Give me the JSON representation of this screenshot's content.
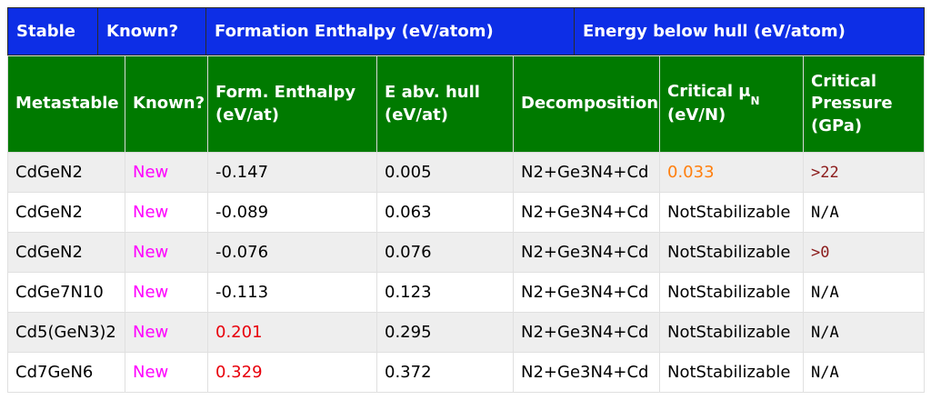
{
  "legend": {
    "stable": "Stable",
    "known": "Known?",
    "formation_enthalpy": "Formation Enthalpy (eV/atom)",
    "energy_below_hull": "Energy below hull (eV/atom)"
  },
  "table": {
    "headers": {
      "metastable": "Metastable",
      "known": "Known?",
      "form_enthalpy_line1": "Form. Enthalpy",
      "form_enthalpy_line2": "(eV/at)",
      "e_abv_hull_line1": "E abv. hull",
      "e_abv_hull_line2": "(eV/at)",
      "decomposition": "Decomposition",
      "critical_mu_prefix": "Critical μ",
      "critical_mu_sub": "N",
      "critical_mu_unit": "(eV/N)",
      "critical_pressure_line1": "Critical",
      "critical_pressure_line2": "Pressure",
      "critical_pressure_line3": "(GPa)"
    },
    "rows": [
      {
        "formula": "CdGeN2",
        "known": "New",
        "form_enthalpy": "-0.147",
        "e_abv_hull": "0.005",
        "decomposition": "N2+Ge3N4+Cd",
        "critical_mu": "0.033",
        "critical_pressure": ">22"
      },
      {
        "formula": "CdGeN2",
        "known": "New",
        "form_enthalpy": "-0.089",
        "e_abv_hull": "0.063",
        "decomposition": "N2+Ge3N4+Cd",
        "critical_mu": "NotStabilizable",
        "critical_pressure": "N/A"
      },
      {
        "formula": "CdGeN2",
        "known": "New",
        "form_enthalpy": "-0.076",
        "e_abv_hull": "0.076",
        "decomposition": "N2+Ge3N4+Cd",
        "critical_mu": "NotStabilizable",
        "critical_pressure": ">0"
      },
      {
        "formula": "CdGe7N10",
        "known": "New",
        "form_enthalpy": "-0.113",
        "e_abv_hull": "0.123",
        "decomposition": "N2+Ge3N4+Cd",
        "critical_mu": "NotStabilizable",
        "critical_pressure": "N/A"
      },
      {
        "formula": "Cd5(GeN3)2",
        "known": "New",
        "form_enthalpy": "0.201",
        "e_abv_hull": "0.295",
        "decomposition": "N2+Ge3N4+Cd",
        "critical_mu": "NotStabilizable",
        "critical_pressure": "N/A"
      },
      {
        "formula": "Cd7GeN6",
        "known": "New",
        "form_enthalpy": "0.329",
        "e_abv_hull": "0.372",
        "decomposition": "N2+Ge3N4+Cd",
        "critical_mu": "NotStabilizable",
        "critical_pressure": "N/A"
      }
    ]
  },
  "colors": {
    "legend_background": "#0d2ee6",
    "header_background": "#007a00",
    "known_new": "#ff00ff",
    "positive_enthalpy": "#e8000b",
    "critical_mu_value": "#ff7f0e",
    "critical_pressure_value": "#8b1a1a",
    "default_text": "#000000"
  }
}
